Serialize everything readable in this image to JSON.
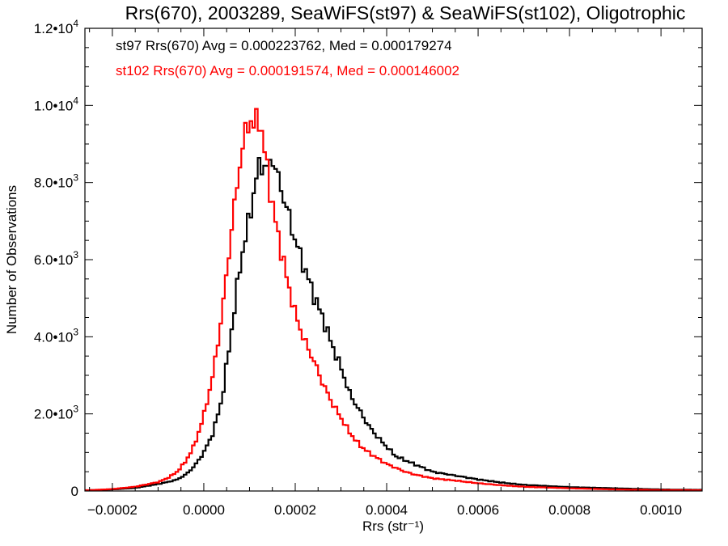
{
  "chart_data": {
    "type": "histogram",
    "title": "Rrs(670), 2003289, SeaWiFS(st97) & SeaWiFS(st102), Oligotrophic",
    "xlabel": "Rrs (str⁻¹)",
    "ylabel": "Number of Observations",
    "xlim": [
      -0.00026,
      0.00109
    ],
    "ylim": [
      0,
      12000
    ],
    "grid": false,
    "x_ticks": [
      {
        "value": -0.0002,
        "label": "−0.0002"
      },
      {
        "value": 0.0,
        "label": "0.0000"
      },
      {
        "value": 0.0002,
        "label": "0.0002"
      },
      {
        "value": 0.0004,
        "label": "0.0004"
      },
      {
        "value": 0.0006,
        "label": "0.0006"
      },
      {
        "value": 0.0008,
        "label": "0.0008"
      },
      {
        "value": 0.001,
        "label": "0.0010"
      }
    ],
    "y_ticks": [
      {
        "value": 0,
        "mant": "0",
        "exp": ""
      },
      {
        "value": 2000,
        "mant": "2.0•10",
        "exp": "3"
      },
      {
        "value": 4000,
        "mant": "4.0•10",
        "exp": "3"
      },
      {
        "value": 6000,
        "mant": "6.0•10",
        "exp": "3"
      },
      {
        "value": 8000,
        "mant": "8.0•10",
        "exp": "3"
      },
      {
        "value": 10000,
        "mant": "1.0•10",
        "exp": "4"
      },
      {
        "value": 12000,
        "mant": "1.2•10",
        "exp": "4"
      }
    ],
    "annotations": [
      {
        "text": "st97 Rrs(670) Avg = 0.000223762, Med = 0.000179274",
        "color": "#000000"
      },
      {
        "text": "st102 Rrs(670) Avg = 0.000191574, Med = 0.000146002",
        "color": "#ff0000"
      }
    ],
    "series": [
      {
        "color": "#000000",
        "x": [
          -0.00025,
          -0.0002,
          -0.00015,
          -0.0001,
          -8e-05,
          -6e-05,
          -4e-05,
          -2e-05,
          0.0,
          2e-05,
          4e-05,
          6e-05,
          8e-05,
          0.0001,
          0.00011,
          0.00012,
          0.00013,
          0.00014,
          0.00015,
          0.00016,
          0.00017,
          0.00018,
          0.0002,
          0.00022,
          0.00024,
          0.00026,
          0.00028,
          0.0003,
          0.00032,
          0.00034,
          0.00036,
          0.00038,
          0.0004,
          0.00042,
          0.00044,
          0.00046,
          0.00048,
          0.0005,
          0.00055,
          0.0006,
          0.00065,
          0.0007,
          0.0008,
          0.0009,
          0.001,
          0.00108
        ],
        "y": [
          20,
          40,
          80,
          180,
          230,
          290,
          420,
          650,
          1000,
          1500,
          2400,
          4100,
          5900,
          7100,
          7800,
          8400,
          8500,
          8300,
          8700,
          8200,
          7800,
          7400,
          6500,
          5800,
          5100,
          4500,
          3800,
          3200,
          2500,
          2100,
          1700,
          1400,
          1150,
          900,
          800,
          700,
          600,
          500,
          400,
          300,
          220,
          160,
          100,
          70,
          40,
          30
        ]
      },
      {
        "color": "#ff0000",
        "x": [
          -0.00025,
          -0.0002,
          -0.00015,
          -0.0001,
          -8e-05,
          -6e-05,
          -4e-05,
          -2e-05,
          0.0,
          2e-05,
          4e-05,
          6e-05,
          8e-05,
          9e-05,
          0.0001,
          0.00011,
          0.00012,
          0.00013,
          0.00014,
          0.00015,
          0.00016,
          0.00017,
          0.00018,
          0.0002,
          0.00022,
          0.00024,
          0.00026,
          0.00028,
          0.0003,
          0.00032,
          0.00034,
          0.00036,
          0.00038,
          0.0004,
          0.00042,
          0.00044,
          0.00046,
          0.00048,
          0.0005,
          0.00055,
          0.0006,
          0.00065,
          0.0007,
          0.0008,
          0.0009,
          0.001,
          0.00108
        ],
        "y": [
          20,
          50,
          110,
          230,
          330,
          480,
          760,
          1200,
          1950,
          3000,
          4600,
          6700,
          8600,
          9200,
          9700,
          9400,
          9800,
          9000,
          8300,
          7400,
          6800,
          6200,
          5600,
          4600,
          3900,
          3400,
          2800,
          2300,
          1900,
          1500,
          1200,
          1000,
          850,
          700,
          600,
          500,
          430,
          380,
          330,
          270,
          200,
          150,
          110,
          70,
          40,
          25,
          20
        ]
      }
    ]
  }
}
